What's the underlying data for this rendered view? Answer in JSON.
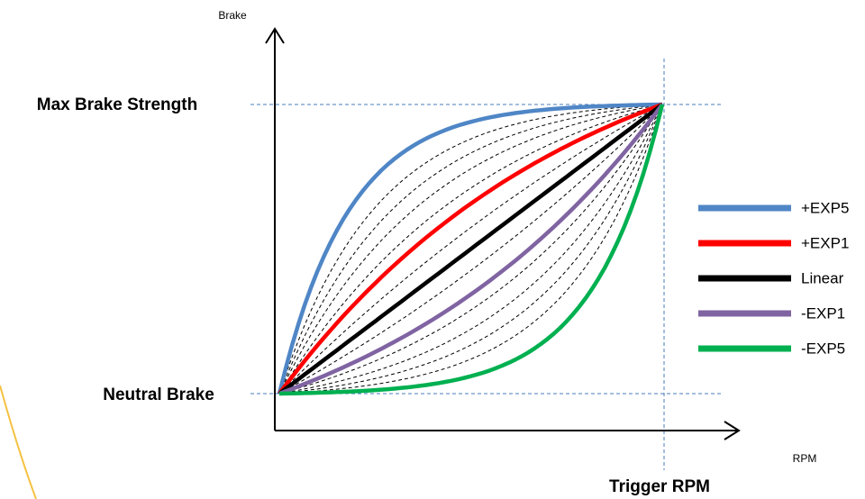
{
  "axes": {
    "y_label": "Brake",
    "x_label": "RPM"
  },
  "levels": {
    "max": "Max Brake Strength",
    "neutral": "Neutral Brake",
    "trigger": "Trigger RPM"
  },
  "legend": [
    "+EXP5",
    "+EXP1",
    "Linear",
    "-EXP1",
    "-EXP5"
  ]
}
